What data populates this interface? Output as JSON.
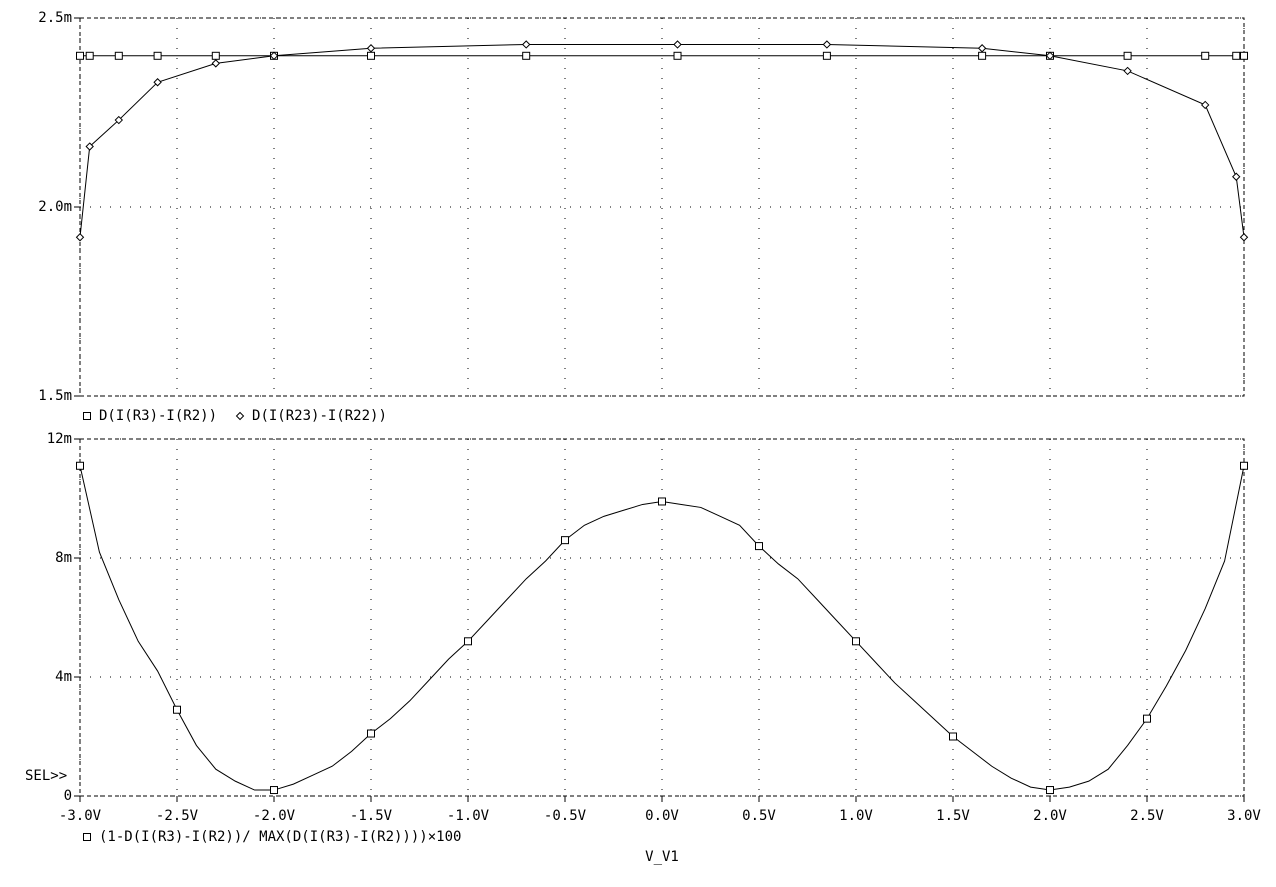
{
  "chart_data": [
    {
      "type": "line",
      "x": [
        -3.0,
        -2.95,
        -2.8,
        -2.6,
        -2.3,
        -2.0,
        -1.5,
        -0.7,
        0.08,
        0.85,
        1.65,
        2.0,
        2.4,
        2.8,
        2.96,
        3.0
      ],
      "series": [
        {
          "name": "D(I(R3)-I(R2))",
          "color": "#000000",
          "marker": "square",
          "values": [
            0.0024,
            0.0024,
            0.0024,
            0.0024,
            0.0024,
            0.0024,
            0.0024,
            0.0024,
            0.0024,
            0.0024,
            0.0024,
            0.0024,
            0.0024,
            0.0024,
            0.0024,
            0.0024
          ]
        },
        {
          "name": "D(I(R23)-I(R22))",
          "color": "#000000",
          "marker": "diamond",
          "values": [
            0.00192,
            0.00216,
            0.00223,
            0.00233,
            0.00238,
            0.0024,
            0.00242,
            0.00243,
            0.00243,
            0.00243,
            0.00242,
            0.0024,
            0.00236,
            0.00227,
            0.00208,
            0.00192
          ]
        }
      ],
      "xlim": [
        -3,
        3
      ],
      "xticks": [
        -3,
        -2.5,
        -2,
        -1.5,
        -1,
        -0.5,
        0,
        0.5,
        1,
        1.5,
        2,
        2.5,
        3
      ],
      "ylim": [
        0.0015,
        0.0025
      ],
      "yticks": [
        {
          "value": 0.0015,
          "label": "1.5m"
        },
        {
          "value": 0.002,
          "label": "2.0m"
        },
        {
          "value": 0.0025,
          "label": "2.5m"
        }
      ],
      "grid": true
    },
    {
      "type": "line",
      "x": [
        -3.0,
        -2.9,
        -2.8,
        -2.7,
        -2.6,
        -2.5,
        -2.4,
        -2.3,
        -2.2,
        -2.1,
        -2.0,
        -1.9,
        -1.8,
        -1.7,
        -1.6,
        -1.5,
        -1.4,
        -1.3,
        -1.2,
        -1.1,
        -1.0,
        -0.9,
        -0.8,
        -0.7,
        -0.6,
        -0.5,
        -0.4,
        -0.3,
        -0.2,
        -0.1,
        0.0,
        0.1,
        0.2,
        0.3,
        0.4,
        0.5,
        0.6,
        0.7,
        0.8,
        0.9,
        1.0,
        1.1,
        1.2,
        1.3,
        1.4,
        1.5,
        1.6,
        1.7,
        1.8,
        1.9,
        2.0,
        2.1,
        2.2,
        2.3,
        2.4,
        2.5,
        2.6,
        2.7,
        2.8,
        2.9,
        3.0
      ],
      "series": [
        {
          "name": "(1-D(I(R3)-I(R2))/ MAX(D(I(R3)-I(R2))))×100",
          "color": "#000000",
          "marker": "square",
          "values": [
            0.0111,
            0.0082,
            0.0066,
            0.0052,
            0.0042,
            0.0029,
            0.0017,
            0.0009,
            0.0005,
            0.0002,
            0.0002,
            0.0004,
            0.0007,
            0.001,
            0.0015,
            0.0021,
            0.0026,
            0.0032,
            0.0039,
            0.0046,
            0.0052,
            0.0059,
            0.0066,
            0.0073,
            0.0079,
            0.0086,
            0.0091,
            0.0094,
            0.0096,
            0.0098,
            0.0099,
            0.0098,
            0.0097,
            0.0094,
            0.0091,
            0.0084,
            0.0078,
            0.0073,
            0.0066,
            0.0059,
            0.0052,
            0.0045,
            0.0038,
            0.0032,
            0.0026,
            0.002,
            0.0015,
            0.001,
            0.0006,
            0.0003,
            0.0002,
            0.0003,
            0.0005,
            0.0009,
            0.0017,
            0.0026,
            0.0037,
            0.0049,
            0.0063,
            0.0079,
            0.0111
          ]
        }
      ],
      "xlim": [
        -3,
        3
      ],
      "xticks": [
        {
          "value": -3,
          "label": "-3.0V"
        },
        {
          "value": -2.5,
          "label": "-2.5V"
        },
        {
          "value": -2,
          "label": "-2.0V"
        },
        {
          "value": -1.5,
          "label": "-1.5V"
        },
        {
          "value": -1,
          "label": "-1.0V"
        },
        {
          "value": -0.5,
          "label": "-0.5V"
        },
        {
          "value": 0,
          "label": "0.0V"
        },
        {
          "value": 0.5,
          "label": "0.5V"
        },
        {
          "value": 1,
          "label": "1.0V"
        },
        {
          "value": 1.5,
          "label": "1.5V"
        },
        {
          "value": 2,
          "label": "2.0V"
        },
        {
          "value": 2.5,
          "label": "2.5V"
        },
        {
          "value": 3,
          "label": "3.0V"
        }
      ],
      "ylim": [
        0,
        0.012
      ],
      "yticks": [
        0,
        {
          "value": 0.004,
          "label": "4m"
        },
        {
          "value": 0.008,
          "label": "8m"
        },
        {
          "value": 0.012,
          "label": "12m"
        }
      ],
      "grid": true,
      "annotation": "SEL>>",
      "xlabel": "V_V1"
    }
  ]
}
